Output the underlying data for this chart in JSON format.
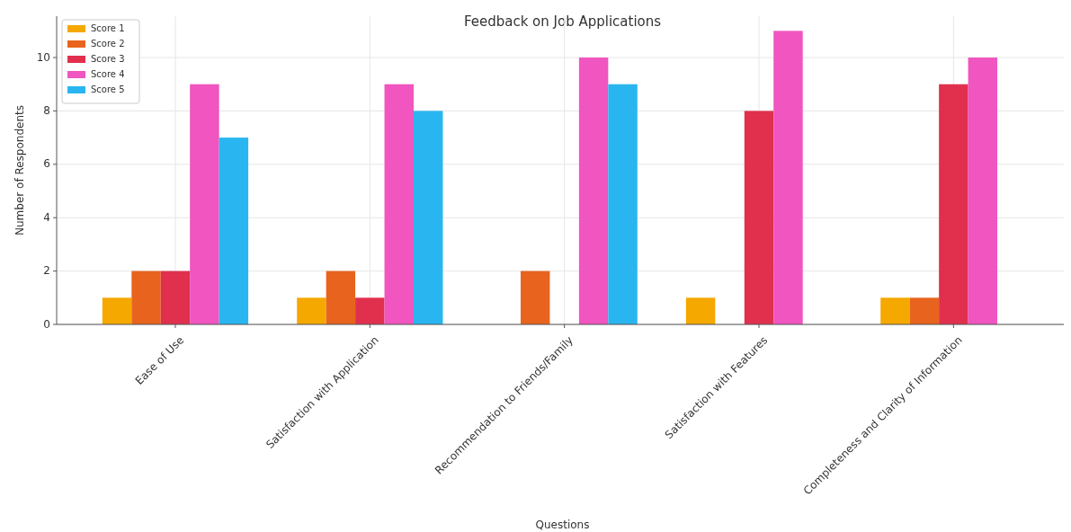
{
  "chart_data": {
    "type": "bar",
    "title": "Feedback on Job Applications",
    "xlabel": "Questions",
    "ylabel": "Number of Respondents",
    "categories": [
      "Ease of Use",
      "Satisfaction with Application",
      "Recommendation to Friends/Family",
      "Satisfaction with Features",
      "Completeness and Clarity of Information"
    ],
    "series": [
      {
        "name": "Score 1",
        "color": "#f5a800",
        "values": [
          1,
          1,
          0,
          1,
          1
        ]
      },
      {
        "name": "Score 2",
        "color": "#e8641e",
        "values": [
          2,
          2,
          2,
          0,
          1
        ]
      },
      {
        "name": "Score 3",
        "color": "#e0304e",
        "values": [
          2,
          1,
          0,
          8,
          9
        ]
      },
      {
        "name": "Score 4",
        "color": "#f055c0",
        "values": [
          9,
          9,
          10,
          11,
          10
        ]
      },
      {
        "name": "Score 5",
        "color": "#29b6f0",
        "values": [
          7,
          8,
          9,
          0,
          0
        ]
      }
    ],
    "ylim": [
      0,
      11.55
    ],
    "yticks": [
      0,
      2,
      4,
      6,
      8,
      10
    ],
    "grid": true,
    "legend": "top left"
  }
}
